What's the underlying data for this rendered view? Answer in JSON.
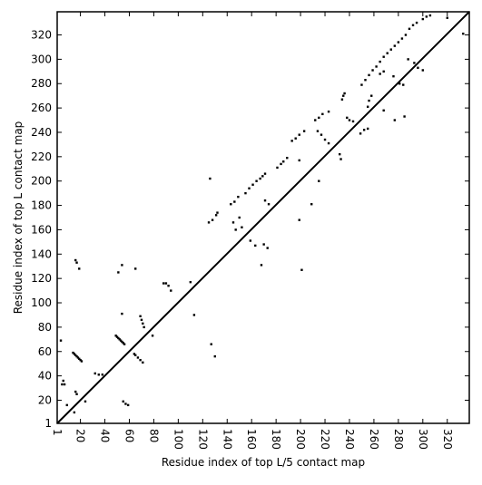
{
  "chart_data": {
    "type": "scatter",
    "xlabel": "Residue index of top L/5 contact map",
    "ylabel": "Residue index of top L contact map",
    "color": "#000000",
    "xlim": [
      1,
      338
    ],
    "ylim": [
      1,
      339
    ],
    "xticks": [
      1,
      20,
      40,
      60,
      80,
      100,
      120,
      140,
      160,
      180,
      200,
      220,
      240,
      260,
      280,
      300,
      320
    ],
    "yticks": [
      1,
      20,
      40,
      60,
      80,
      100,
      120,
      140,
      160,
      180,
      200,
      220,
      240,
      260,
      280,
      300,
      320
    ],
    "x": [
      14,
      15,
      16,
      17,
      18,
      19,
      20,
      21,
      49,
      50,
      51,
      52,
      53,
      54,
      55,
      56,
      65,
      69,
      70,
      71,
      72,
      88,
      90,
      92,
      94,
      16,
      17,
      19,
      54,
      51,
      125,
      128,
      131,
      132,
      143,
      146,
      149,
      155,
      158,
      161,
      164,
      167,
      169,
      171,
      181,
      184,
      186,
      189,
      193,
      196,
      199,
      203,
      212,
      215,
      218,
      223,
      234,
      235,
      236,
      250,
      253,
      256,
      259,
      262,
      265,
      268,
      271,
      274,
      277,
      280,
      283,
      286,
      289,
      292,
      295,
      300,
      303,
      306,
      320,
      145,
      147,
      150,
      152,
      174,
      171,
      126,
      170,
      173,
      159,
      163,
      168,
      199,
      201,
      209,
      215,
      199,
      214,
      217,
      220,
      223,
      232,
      233,
      238,
      240,
      243,
      249,
      252,
      255,
      255,
      256,
      258,
      268,
      265,
      268,
      276,
      277,
      285,
      281,
      284,
      288,
      293,
      296,
      300,
      333,
      127,
      130,
      110,
      113,
      79,
      64,
      65,
      67,
      69,
      71,
      55,
      57,
      59,
      54,
      32,
      35,
      38,
      24,
      16,
      17,
      5,
      6,
      7,
      9,
      15,
      4
    ],
    "y": [
      59,
      58,
      57,
      56,
      55,
      54,
      53,
      52,
      73,
      72,
      71,
      70,
      69,
      68,
      67,
      66,
      128,
      89,
      86,
      83,
      80,
      116,
      116,
      114,
      110,
      135,
      133,
      128,
      131,
      125,
      166,
      168,
      172,
      174,
      181,
      183,
      187,
      190,
      194,
      197,
      200,
      202,
      204,
      206,
      211,
      214,
      216,
      219,
      233,
      235,
      238,
      241,
      250,
      252,
      255,
      257,
      267,
      270,
      272,
      279,
      283,
      287,
      291,
      294,
      298,
      302,
      305,
      308,
      311,
      314,
      317,
      320,
      325,
      328,
      330,
      333,
      335,
      336,
      334,
      166,
      160,
      170,
      162,
      181,
      184,
      202,
      148,
      145,
      151,
      147,
      131,
      168,
      127,
      181,
      200,
      217,
      241,
      238,
      234,
      231,
      222,
      218,
      252,
      250,
      249,
      239,
      242,
      243,
      261,
      266,
      270,
      258,
      288,
      290,
      286,
      250,
      253,
      280,
      279,
      300,
      297,
      293,
      291,
      321,
      66,
      56,
      117,
      90,
      73,
      58,
      57,
      55,
      53,
      51,
      19,
      17,
      16,
      91,
      42,
      41,
      41,
      19,
      27,
      25,
      33,
      36,
      33,
      16,
      10,
      69
    ]
  }
}
